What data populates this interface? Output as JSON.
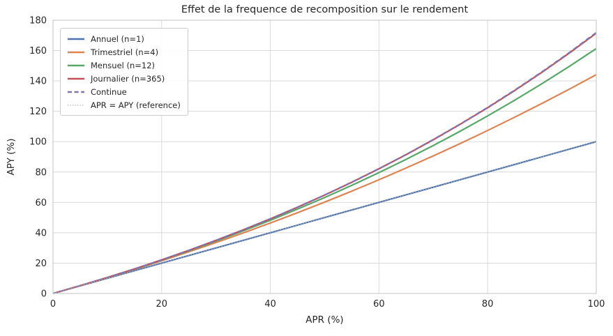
{
  "chart_data": {
    "type": "line",
    "title": "Effet de la frequence de recomposition sur le rendement",
    "xlabel": "APR (%)",
    "ylabel": "APY (%)",
    "xlim": [
      0,
      100
    ],
    "ylim": [
      0,
      180
    ],
    "xticks": [
      0,
      20,
      40,
      60,
      80,
      100
    ],
    "yticks": [
      0,
      20,
      40,
      60,
      80,
      100,
      120,
      140,
      160,
      180
    ],
    "grid": true,
    "legend_position": "upper left",
    "x": [
      0,
      5,
      10,
      15,
      20,
      25,
      30,
      35,
      40,
      45,
      50,
      55,
      60,
      65,
      70,
      75,
      80,
      85,
      90,
      95,
      100
    ],
    "series": [
      {
        "name": "Annuel (n=1)",
        "color": "#4C72B0",
        "style": "solid",
        "values": [
          0,
          5,
          10,
          15,
          20,
          25,
          30,
          35,
          40,
          45,
          50,
          55,
          60,
          65,
          70,
          75,
          80,
          85,
          90,
          95,
          100
        ]
      },
      {
        "name": "Trimestriel (n=4)",
        "color": "#DD8452",
        "style": "solid",
        "values": [
          0,
          5.09,
          10.38,
          15.87,
          21.55,
          27.44,
          33.55,
          39.87,
          46.41,
          53.18,
          60.18,
          67.42,
          74.9,
          82.63,
          90.61,
          98.85,
          107.36,
          116.14,
          125.19,
          134.52,
          144.14
        ]
      },
      {
        "name": "Mensuel (n=12)",
        "color": "#55A868",
        "style": "solid",
        "values": [
          0,
          5.12,
          10.47,
          16.08,
          21.94,
          28.07,
          34.49,
          41.2,
          48.21,
          55.55,
          63.21,
          71.22,
          79.59,
          88.33,
          97.46,
          106.99,
          116.94,
          127.33,
          138.18,
          149.5,
          161.3
        ]
      },
      {
        "name": "Journalier (n=365)",
        "color": "#C44E52",
        "style": "solid",
        "values": [
          0,
          5.13,
          10.52,
          16.18,
          22.13,
          28.39,
          34.97,
          41.88,
          49.15,
          56.79,
          64.82,
          73.25,
          82.12,
          91.44,
          101.24,
          111.54,
          122.36,
          133.73,
          145.69,
          158.27,
          171.46
        ]
      },
      {
        "name": "Continue",
        "color": "#8172B3",
        "style": "dashed",
        "values": [
          0,
          5.13,
          10.52,
          16.18,
          22.14,
          28.4,
          34.99,
          41.91,
          49.18,
          56.83,
          64.87,
          73.33,
          82.21,
          91.55,
          101.38,
          111.7,
          122.55,
          133.96,
          145.96,
          158.57,
          171.83
        ]
      },
      {
        "name": "APR = APY (reference)",
        "color": "#ababab",
        "style": "dotted",
        "values": [
          0,
          5,
          10,
          15,
          20,
          25,
          30,
          35,
          40,
          45,
          50,
          55,
          60,
          65,
          70,
          75,
          80,
          85,
          90,
          95,
          100
        ]
      }
    ],
    "colors": {
      "grid": "#d9d9d9",
      "frame": "#cccccc",
      "text": "#262626",
      "background": "#ffffff"
    }
  }
}
